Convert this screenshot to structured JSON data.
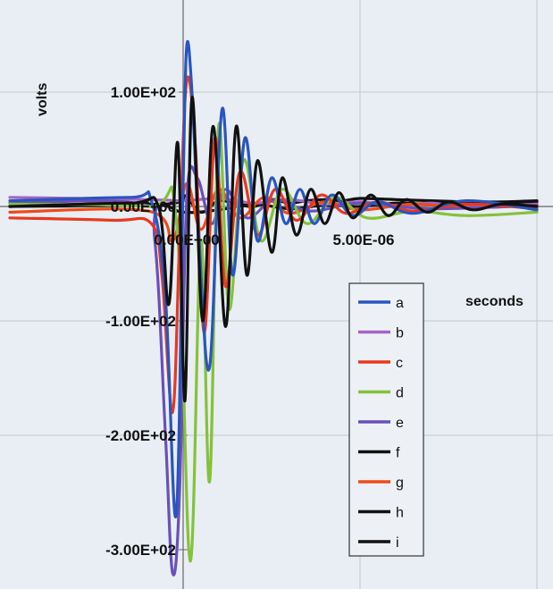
{
  "chart_data": {
    "type": "line",
    "xlabel": "seconds",
    "ylabel": "volts",
    "xlim": [
      -4.9e-06,
      1e-05
    ],
    "ylim": [
      -330,
      170
    ],
    "x_ticks": [
      {
        "value": 0,
        "label": "0.00E+00"
      },
      {
        "value": 5e-06,
        "label": "5.00E-06"
      }
    ],
    "y_ticks": [
      {
        "value": 100,
        "label": "1.00E+02"
      },
      {
        "value": 0,
        "label": "0.00E+00"
      },
      {
        "value": -100,
        "label": "-1.00E+02"
      },
      {
        "value": -200,
        "label": "-2.00E+02"
      },
      {
        "value": -300,
        "label": "-3.00E+02"
      }
    ],
    "x_gridlines": [
      0,
      5e-06,
      1e-05
    ],
    "y_gridlines": [
      100,
      0,
      -100,
      -200
    ],
    "grid": true,
    "legend_position": "lower-right",
    "series": [
      {
        "name": "a",
        "color": "#2a55c0",
        "x": [
          -4.9e-06,
          -1.5e-06,
          -9e-07,
          -5e-07,
          -2e-07,
          0,
          1e-07,
          2.5e-07,
          4.5e-07,
          7.5e-07,
          1.1e-06,
          1.4e-06,
          1.75e-06,
          2.1e-06,
          2.5e-06,
          2.9e-06,
          3.3e-06,
          3.7e-06,
          4.2e-06,
          4.8e-06,
          5.5e-06,
          6.5e-06,
          8e-06,
          1e-05
        ],
        "y": [
          5,
          8,
          5,
          -80,
          -270,
          20,
          140,
          100,
          -30,
          -140,
          85,
          -60,
          60,
          -30,
          25,
          -15,
          15,
          -15,
          10,
          -8,
          4,
          -6,
          5,
          -3
        ]
      },
      {
        "name": "b",
        "color": "#a565c6",
        "x": [
          -4.9e-06,
          -1e-06,
          0,
          1e-06,
          2e-06,
          3e-06,
          4e-06,
          5e-06,
          6e-06,
          7e-06,
          8e-06,
          1e-05
        ],
        "y": [
          8,
          6,
          5,
          7,
          3,
          6,
          2,
          4,
          1,
          3,
          0,
          2
        ]
      },
      {
        "name": "c",
        "color": "#e83820",
        "x": [
          -4.9e-06,
          -2e-06,
          -9e-07,
          -6e-07,
          -3e-07,
          -1e-07,
          1e-07,
          3.5e-07,
          6e-07,
          9e-07,
          1.2e-06,
          1.6e-06,
          2.1e-06,
          2.6e-06,
          3.2e-06,
          3.9e-06,
          4.6e-06,
          5.5e-06,
          6.5e-06,
          8e-06,
          1e-05
        ],
        "y": [
          -10,
          -12,
          -15,
          -60,
          -180,
          -30,
          110,
          50,
          -110,
          60,
          -70,
          30,
          -25,
          15,
          -12,
          10,
          -6,
          4,
          -4,
          2,
          -2
        ]
      },
      {
        "name": "d",
        "color": "#84c23a",
        "x": [
          -4.9e-06,
          -1e-06,
          -2e-07,
          2e-07,
          5e-07,
          7.5e-07,
          1e-06,
          1.3e-06,
          1.7e-06,
          2.2e-06,
          2.8e-06,
          3.5e-06,
          4.3e-06,
          5.2e-06,
          6.5e-06,
          8e-06,
          1e-05
        ],
        "y": [
          2,
          0,
          -10,
          -310,
          -30,
          -240,
          70,
          -90,
          40,
          -30,
          15,
          -15,
          8,
          -10,
          -4,
          -8,
          -5
        ]
      },
      {
        "name": "e",
        "color": "#6a50b8",
        "x": [
          -4.9e-06,
          -1.2e-06,
          -8e-07,
          -5e-07,
          -3e-07,
          -1e-07,
          1e-07,
          4e-07,
          8e-07,
          1.2e-06,
          1.8e-06,
          2.6e-06,
          3.6e-06,
          5e-06,
          7e-06,
          1e-05
        ],
        "y": [
          3,
          2,
          -30,
          -200,
          -320,
          -250,
          5,
          25,
          -15,
          15,
          -10,
          6,
          -4,
          3,
          -2,
          1
        ]
      },
      {
        "name": "f",
        "color": "#111111",
        "x": [
          -4.9e-06,
          -1e-06,
          0,
          1e-06,
          2e-06,
          3e-06,
          4e-06,
          5e-06,
          6e-06,
          7e-06,
          8e-06,
          9e-06,
          1e-05
        ],
        "y": [
          0,
          2,
          -5,
          -3,
          2,
          -2,
          1,
          0,
          3,
          2,
          4,
          4,
          5
        ]
      },
      {
        "name": "g",
        "color": "#f04a18",
        "x": [
          -4.9e-06,
          -1e-06,
          -3e-07,
          1e-07,
          5e-07,
          1e-06,
          1.6e-06,
          2.3e-06,
          3e-06,
          4e-06,
          5e-06,
          6.5e-06,
          8e-06,
          1e-05
        ],
        "y": [
          -5,
          -4,
          -30,
          20,
          -20,
          15,
          -10,
          8,
          -6,
          4,
          -3,
          2,
          -1,
          1
        ]
      },
      {
        "name": "h",
        "color": "#111111",
        "x": [
          -4.9e-06,
          -1.5e-06,
          -7e-07,
          -4e-07,
          -1.5e-07,
          5e-08,
          2.5e-07,
          5.5e-07,
          8.5e-07,
          1.2e-06,
          1.5e-06,
          1.8e-06,
          2.1e-06,
          2.5e-06,
          2.8e-06,
          3.2e-06,
          3.6e-06,
          4e-06,
          4.4e-06,
          4.8e-06,
          5.3e-06,
          5.8e-06,
          6.3e-06,
          6.9e-06,
          7.5e-06,
          8.2e-06,
          9e-06,
          1e-05
        ],
        "y": [
          0,
          3,
          0,
          -85,
          55,
          -170,
          95,
          -100,
          70,
          -105,
          70,
          -60,
          40,
          -40,
          25,
          -25,
          15,
          -15,
          12,
          -10,
          10,
          -8,
          6,
          -5,
          4,
          -3,
          2,
          0
        ]
      },
      {
        "name": "i",
        "color": "#111111",
        "x": [
          -4.9e-06,
          -5e-07,
          0,
          5e-07,
          1e-06,
          1.5e-06,
          2e-06,
          2.5e-06,
          3e-06,
          3.5e-06,
          4e-06,
          4.5e-06,
          5e-06,
          6e-06,
          7e-06,
          8e-06,
          9e-06,
          1e-05
        ],
        "y": [
          0,
          2,
          10,
          -5,
          5,
          2,
          0,
          6,
          3,
          5,
          6,
          5,
          7,
          6,
          5,
          4,
          3,
          4
        ]
      }
    ]
  }
}
